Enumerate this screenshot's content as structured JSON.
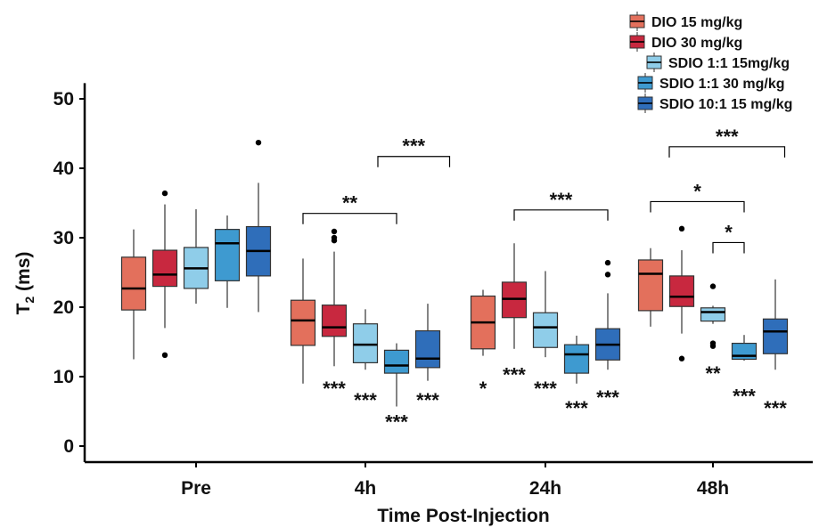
{
  "chart_data": {
    "type": "box",
    "xlabel": "Time Post-Injection",
    "ylabel_main": "T",
    "ylabel_sub": "2",
    "ylabel_unit": " (ms)",
    "ylim": [
      0,
      52
    ],
    "yticks": [
      0,
      10,
      20,
      30,
      40,
      50
    ],
    "categories": [
      "Pre",
      "4h",
      "24h",
      "48h"
    ],
    "series": [
      {
        "name": "DIO 15 mg/kg",
        "color": "#E3705C",
        "boxes": [
          {
            "whisker_low": 12.5,
            "q1": 19.6,
            "median": 22.7,
            "q3": 27.2,
            "whisker_high": 31.2,
            "outliers": []
          },
          {
            "whisker_low": 9.0,
            "q1": 14.5,
            "median": 18.1,
            "q3": 21.0,
            "whisker_high": 27.0,
            "outliers": []
          },
          {
            "whisker_low": 13.0,
            "q1": 14.0,
            "median": 17.8,
            "q3": 21.6,
            "whisker_high": 22.5,
            "outliers": []
          },
          {
            "whisker_low": 17.2,
            "q1": 19.5,
            "median": 24.8,
            "q3": 26.8,
            "whisker_high": 28.5,
            "outliers": []
          }
        ]
      },
      {
        "name": "DIO 30 mg/kg",
        "color": "#C8283F",
        "boxes": [
          {
            "whisker_low": 17.0,
            "q1": 23.0,
            "median": 24.7,
            "q3": 28.2,
            "whisker_high": 34.8,
            "outliers": [
              36.4,
              13.1
            ]
          },
          {
            "whisker_low": 11.5,
            "q1": 15.8,
            "median": 17.1,
            "q3": 20.3,
            "whisker_high": 28.0,
            "outliers": [
              30.9,
              30.0,
              29.6
            ]
          },
          {
            "whisker_low": 14.0,
            "q1": 18.5,
            "median": 21.2,
            "q3": 23.6,
            "whisker_high": 29.2,
            "outliers": []
          },
          {
            "whisker_low": 16.2,
            "q1": 20.1,
            "median": 21.5,
            "q3": 24.5,
            "whisker_high": 28.2,
            "outliers": [
              31.3,
              12.6
            ]
          }
        ]
      },
      {
        "name": "SDIO 1:1 15mg/kg",
        "color": "#8FCDE9",
        "boxes": [
          {
            "whisker_low": 20.5,
            "q1": 22.7,
            "median": 25.6,
            "q3": 28.6,
            "whisker_high": 34.1,
            "outliers": []
          },
          {
            "whisker_low": 11.0,
            "q1": 12.0,
            "median": 14.6,
            "q3": 17.6,
            "whisker_high": 19.7,
            "outliers": []
          },
          {
            "whisker_low": 12.8,
            "q1": 14.2,
            "median": 17.1,
            "q3": 19.2,
            "whisker_high": 25.2,
            "outliers": []
          },
          {
            "whisker_low": 17.6,
            "q1": 18.0,
            "median": 19.3,
            "q3": 19.9,
            "whisker_high": 20.2,
            "outliers": [
              23.0,
              14.8,
              14.4
            ]
          }
        ]
      },
      {
        "name": "SDIO 1:1 30 mg/kg",
        "color": "#3E9AD0",
        "boxes": [
          {
            "whisker_low": 19.9,
            "q1": 23.8,
            "median": 29.2,
            "q3": 31.2,
            "whisker_high": 33.2,
            "outliers": []
          },
          {
            "whisker_low": 5.7,
            "q1": 10.5,
            "median": 11.6,
            "q3": 13.8,
            "whisker_high": 14.8,
            "outliers": []
          },
          {
            "whisker_low": 9.0,
            "q1": 10.5,
            "median": 13.2,
            "q3": 14.6,
            "whisker_high": 15.9,
            "outliers": []
          },
          {
            "whisker_low": 12.3,
            "q1": 12.5,
            "median": 13.0,
            "q3": 14.8,
            "whisker_high": 16.0,
            "outliers": []
          }
        ]
      },
      {
        "name": "SDIO 10:1 15 mg/kg",
        "color": "#2F6EBA",
        "boxes": [
          {
            "whisker_low": 19.3,
            "q1": 24.5,
            "median": 28.1,
            "q3": 31.6,
            "whisker_high": 37.9,
            "outliers": [
              43.7
            ]
          },
          {
            "whisker_low": 9.4,
            "q1": 11.3,
            "median": 12.6,
            "q3": 16.6,
            "whisker_high": 20.5,
            "outliers": []
          },
          {
            "whisker_low": 11.0,
            "q1": 12.4,
            "median": 14.6,
            "q3": 16.9,
            "whisker_high": 22.0,
            "outliers": [
              26.4,
              24.7
            ]
          },
          {
            "whisker_low": 11.0,
            "q1": 13.3,
            "median": 16.5,
            "q3": 18.3,
            "whisker_high": 24.0,
            "outliers": []
          }
        ]
      }
    ],
    "significance_below_boxes": [
      {
        "category": "4h",
        "series": "DIO 30 mg/kg",
        "label": "***",
        "y": 8.6
      },
      {
        "category": "4h",
        "series": "SDIO 1:1 15mg/kg",
        "label": "***",
        "y": 6.9
      },
      {
        "category": "4h",
        "series": "SDIO 1:1 30 mg/kg",
        "label": "***",
        "y": 3.8
      },
      {
        "category": "4h",
        "series": "SDIO 10:1 15 mg/kg",
        "label": "***",
        "y": 6.9
      },
      {
        "category": "24h",
        "series": "DIO 15 mg/kg",
        "label": "*",
        "y": 8.6
      },
      {
        "category": "24h",
        "series": "DIO 30 mg/kg",
        "label": "***",
        "y": 10.6
      },
      {
        "category": "24h",
        "series": "SDIO 1:1 15mg/kg",
        "label": "***",
        "y": 8.6
      },
      {
        "category": "24h",
        "series": "SDIO 1:1 30 mg/kg",
        "label": "***",
        "y": 5.8
      },
      {
        "category": "24h",
        "series": "SDIO 10:1 15 mg/kg",
        "label": "***",
        "y": 7.3
      },
      {
        "category": "48h",
        "series": "SDIO 1:1 15mg/kg",
        "label": "**",
        "y": 10.8
      },
      {
        "category": "48h",
        "series": "SDIO 1:1 30 mg/kg",
        "label": "***",
        "y": 7.5
      },
      {
        "category": "48h",
        "series": "SDIO 10:1 15 mg/kg",
        "label": "***",
        "y": 5.8
      }
    ],
    "comparison_brackets": [
      {
        "category": "4h",
        "from": "SDIO 1:1 30 mg/kg",
        "to": "SDIO 10:1 15 mg/kg",
        "offset_from": -0.6,
        "offset_to": 0.7,
        "y": 41.7,
        "label": "***"
      },
      {
        "category": "4h",
        "from": "DIO 15 mg/kg",
        "to": "SDIO 1:1 30 mg/kg",
        "offset_from": 0,
        "offset_to": 0,
        "y": 33.5,
        "label": "**"
      },
      {
        "category": "24h",
        "from": "DIO 30 mg/kg",
        "to": "SDIO 10:1 15 mg/kg",
        "offset_from": 0,
        "offset_to": 0,
        "y": 34.0,
        "label": "***"
      },
      {
        "category": "48h",
        "from": "DIO 30 mg/kg",
        "to": "SDIO 10:1 15 mg/kg",
        "offset_from": -0.4,
        "offset_to": 0.3,
        "y": 43.1,
        "label": "***"
      },
      {
        "category": "48h",
        "from": "DIO 15 mg/kg",
        "to": "SDIO 1:1 30 mg/kg",
        "offset_from": 0,
        "offset_to": 0,
        "y": 35.2,
        "label": "*"
      },
      {
        "category": "48h",
        "from": "SDIO 1:1 15mg/kg",
        "to": "SDIO 1:1 30 mg/kg",
        "offset_from": 0,
        "offset_to": 0,
        "y": 29.3,
        "label": "*"
      }
    ],
    "legend": {
      "placement": "top-right",
      "entries": [
        "DIO 15 mg/kg",
        "DIO 30 mg/kg",
        "SDIO 1:1 15mg/kg",
        "SDIO 1:1 30 mg/kg",
        "SDIO 10:1 15 mg/kg"
      ]
    },
    "grid": false
  }
}
